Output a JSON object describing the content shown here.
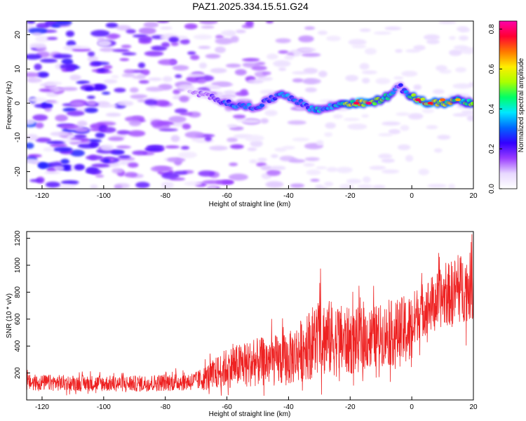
{
  "figure_title": "PAZ1.2025.334.15.51.G24",
  "chart_data": [
    {
      "type": "heatmap",
      "title": "PAZ1.2025.334.15.51.G24",
      "xlabel": "Height of straight line (km)",
      "ylabel": "Frequency (Hz)",
      "xlim": [
        -125,
        20
      ],
      "ylim": [
        -25,
        24
      ],
      "xticks": [
        -120,
        -100,
        -80,
        -60,
        -40,
        -20,
        0,
        20
      ],
      "yticks": [
        -20,
        -10,
        0,
        10,
        20
      ],
      "colorbar": {
        "label": "Normalized spectral amplitude",
        "range": [
          0.0,
          0.84
        ],
        "ticks": [
          "0.0",
          "0.2",
          "0.4",
          "0.6",
          "0.8"
        ],
        "colors": [
          "#ffffff",
          "#e8d8ff",
          "#9a3dff",
          "#3300ff",
          "#0066ff",
          "#00e8ff",
          "#00ff66",
          "#aaff00",
          "#ffee00",
          "#ff7700",
          "#ff0033",
          "#ff00aa"
        ]
      },
      "ridge": {
        "description": "dominant frequency trace",
        "x": [
          -72,
          -65,
          -60,
          -55,
          -50,
          -46,
          -42,
          -38,
          -34,
          -30,
          -26,
          -22,
          -18,
          -14,
          -10,
          -6,
          -4,
          -2,
          2,
          6,
          10,
          15,
          20
        ],
        "y": [
          3,
          2,
          0,
          -1,
          -1,
          1,
          3,
          1,
          -1,
          -2,
          -1,
          0,
          0,
          0,
          1,
          3,
          5,
          3,
          1,
          0,
          0,
          1,
          0
        ],
        "amplitude": [
          0.12,
          0.2,
          0.3,
          0.35,
          0.3,
          0.28,
          0.35,
          0.3,
          0.32,
          0.4,
          0.35,
          0.5,
          0.65,
          0.7,
          0.55,
          0.45,
          0.2,
          0.35,
          0.75,
          0.7,
          0.65,
          0.55,
          0.5
        ]
      }
    },
    {
      "type": "line",
      "xlabel": "Height of straight line (km)",
      "ylabel": "SNR (10 * v/v)",
      "xlim": [
        -125,
        20
      ],
      "ylim": [
        0,
        1250
      ],
      "xticks": [
        -120,
        -100,
        -80,
        -60,
        -40,
        -20,
        0,
        20
      ],
      "yticks": [
        200,
        400,
        600,
        800,
        1000,
        1200
      ],
      "color": "#ee2222",
      "envelope": {
        "x": [
          -125,
          -110,
          -90,
          -70,
          -65,
          -60,
          -50,
          -40,
          -34,
          -30,
          -25,
          -20,
          -10,
          -5,
          0,
          2,
          10,
          15,
          20
        ],
        "baseline": [
          130,
          125,
          120,
          140,
          180,
          240,
          280,
          300,
          400,
          470,
          450,
          430,
          480,
          500,
          520,
          650,
          760,
          820,
          850
        ],
        "spread": [
          60,
          60,
          60,
          70,
          110,
          150,
          180,
          200,
          250,
          300,
          280,
          250,
          230,
          250,
          280,
          200,
          220,
          260,
          250
        ]
      }
    }
  ]
}
